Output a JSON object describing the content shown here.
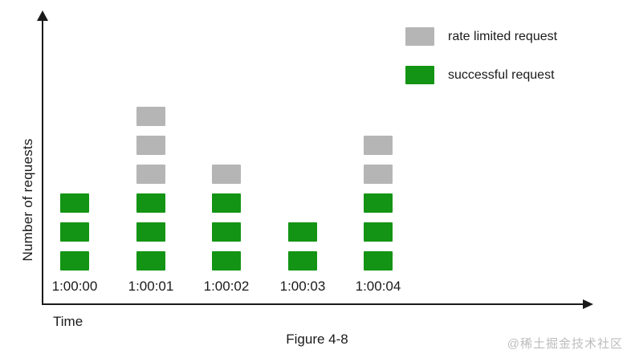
{
  "chart_data": {
    "type": "bar",
    "stacked": true,
    "categories": [
      "1:00:00",
      "1:00:01",
      "1:00:02",
      "1:00:03",
      "1:00:04"
    ],
    "series": [
      {
        "name": "successful request",
        "color": "#149414",
        "values": [
          3,
          3,
          3,
          2,
          3
        ]
      },
      {
        "name": "rate limited request",
        "color": "#b5b5b5",
        "values": [
          0,
          3,
          1,
          0,
          2
        ]
      }
    ],
    "title": "",
    "xlabel": "Time",
    "ylabel": "Number of requests",
    "caption": "Figure 4-8",
    "ylim": [
      0,
      7
    ],
    "grid": false,
    "legend_position": "top-right",
    "block_unit": 1
  },
  "legend": {
    "items": [
      {
        "label": "rate limited request",
        "color": "#b5b5b5"
      },
      {
        "label": "successful request",
        "color": "#149414"
      }
    ]
  },
  "watermark": "@稀土掘金技术社区",
  "colors": {
    "successful": "#149414",
    "rate_limited": "#b5b5b5",
    "axis": "#1a1a1a",
    "background": "#ffffff",
    "watermark": "#bcbcbc"
  }
}
